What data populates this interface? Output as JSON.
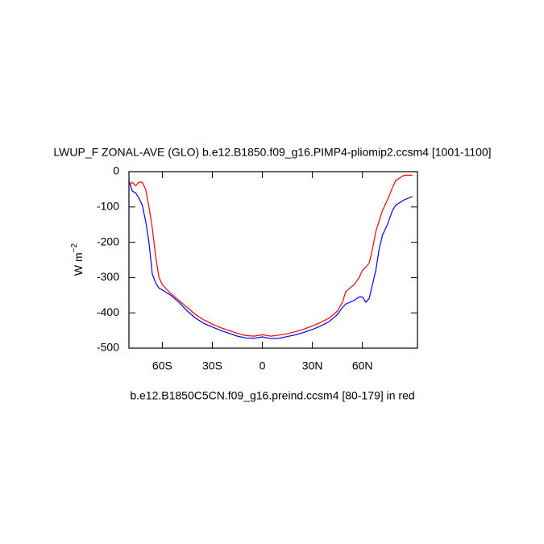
{
  "chart_data": {
    "type": "line",
    "title": "LWUP_F ZONAL-AVE (GLO) b.e12.B1850.f09_g16.PIMP4-pliomip2.ccsm4 [1001-1100]",
    "subtitle": "b.e12.B1850C5CN.f09_g16.preind.ccsm4 [80-179] in red",
    "ylabel": {
      "text": "W m",
      "superscript": "−2"
    },
    "x": [
      -80,
      -78,
      -76,
      -74,
      -72,
      -70,
      -68,
      -66,
      -64,
      -62,
      -60,
      -55,
      -50,
      -45,
      -40,
      -35,
      -30,
      -25,
      -20,
      -15,
      -10,
      -5,
      0,
      5,
      10,
      15,
      20,
      25,
      30,
      35,
      40,
      45,
      48,
      50,
      55,
      58,
      60,
      62,
      64,
      66,
      68,
      70,
      72,
      75,
      78,
      80,
      85,
      90
    ],
    "series": [
      {
        "color": "#0000ff",
        "values": [
          -25,
          -55,
          -60,
          -75,
          -95,
          -140,
          -200,
          -290,
          -315,
          -330,
          -335,
          -350,
          -370,
          -395,
          -415,
          -430,
          -440,
          -450,
          -458,
          -466,
          -471,
          -472,
          -468,
          -473,
          -472,
          -467,
          -462,
          -455,
          -447,
          -437,
          -425,
          -405,
          -385,
          -375,
          -365,
          -355,
          -355,
          -370,
          -360,
          -320,
          -280,
          -220,
          -180,
          -150,
          -110,
          -95,
          -80,
          -70
        ]
      },
      {
        "color": "#ff0000",
        "values": [
          -40,
          -30,
          -40,
          -30,
          -30,
          -50,
          -100,
          -160,
          -240,
          -300,
          -320,
          -345,
          -365,
          -385,
          -405,
          -420,
          -432,
          -442,
          -450,
          -458,
          -464,
          -466,
          -462,
          -466,
          -463,
          -459,
          -453,
          -446,
          -437,
          -427,
          -415,
          -395,
          -370,
          -340,
          -320,
          -300,
          -280,
          -270,
          -260,
          -220,
          -170,
          -140,
          -110,
          -80,
          -45,
          -25,
          -10,
          -10
        ]
      }
    ],
    "xlim": [
      -80,
      93
    ],
    "xticks": [
      {
        "value": -60,
        "label": "60S"
      },
      {
        "value": -30,
        "label": "30S"
      },
      0,
      {
        "value": 30,
        "label": "30N"
      },
      {
        "value": 60,
        "label": "60N"
      }
    ],
    "ylim": [
      -500,
      0
    ],
    "yticks": [
      -500,
      -400,
      -300,
      -200,
      -100,
      0
    ]
  }
}
